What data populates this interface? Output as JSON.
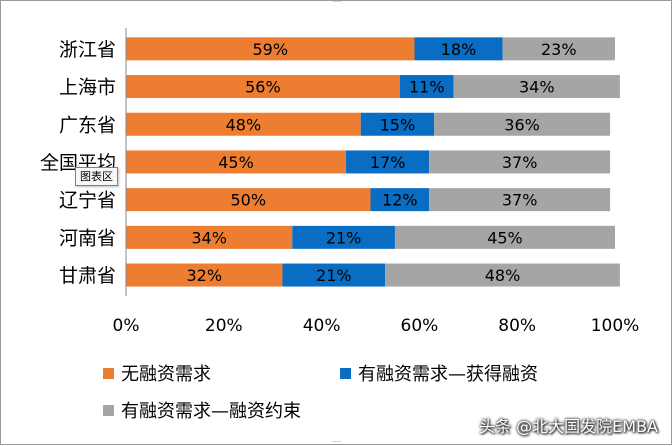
{
  "chart_data": {
    "type": "bar",
    "orientation": "horizontal",
    "stacked": true,
    "categories": [
      "浙江省",
      "上海市",
      "广东省",
      "全国平均",
      "辽宁省",
      "河南省",
      "甘肃省"
    ],
    "series": [
      {
        "name": "无融资需求",
        "color": "#ed7d31",
        "values": [
          59,
          56,
          48,
          45,
          50,
          34,
          32
        ]
      },
      {
        "name": "有融资需求—获得融资",
        "color": "#0a6dc4",
        "values": [
          18,
          11,
          15,
          17,
          12,
          21,
          21
        ]
      },
      {
        "name": "有融资需求—融资约束",
        "color": "#a5a5a5",
        "values": [
          23,
          34,
          36,
          37,
          37,
          45,
          48
        ]
      }
    ],
    "labels": [
      [
        "59%",
        "56%",
        "48%",
        "45%",
        "50%",
        "34%",
        "32%"
      ],
      [
        "18%",
        "11%",
        "15%",
        "17%",
        "12%",
        "21%",
        "21%"
      ],
      [
        "23%",
        "34%",
        "36%",
        "37%",
        "37%",
        "45%",
        "48%"
      ]
    ],
    "xlim": [
      0,
      100
    ],
    "x_ticks": [
      "0%",
      "20%",
      "40%",
      "60%",
      "80%",
      "100%"
    ],
    "grid": false,
    "legend_position": "bottom"
  },
  "tooltip": "图表区",
  "watermark": "头条 @北大国发院EMBA"
}
